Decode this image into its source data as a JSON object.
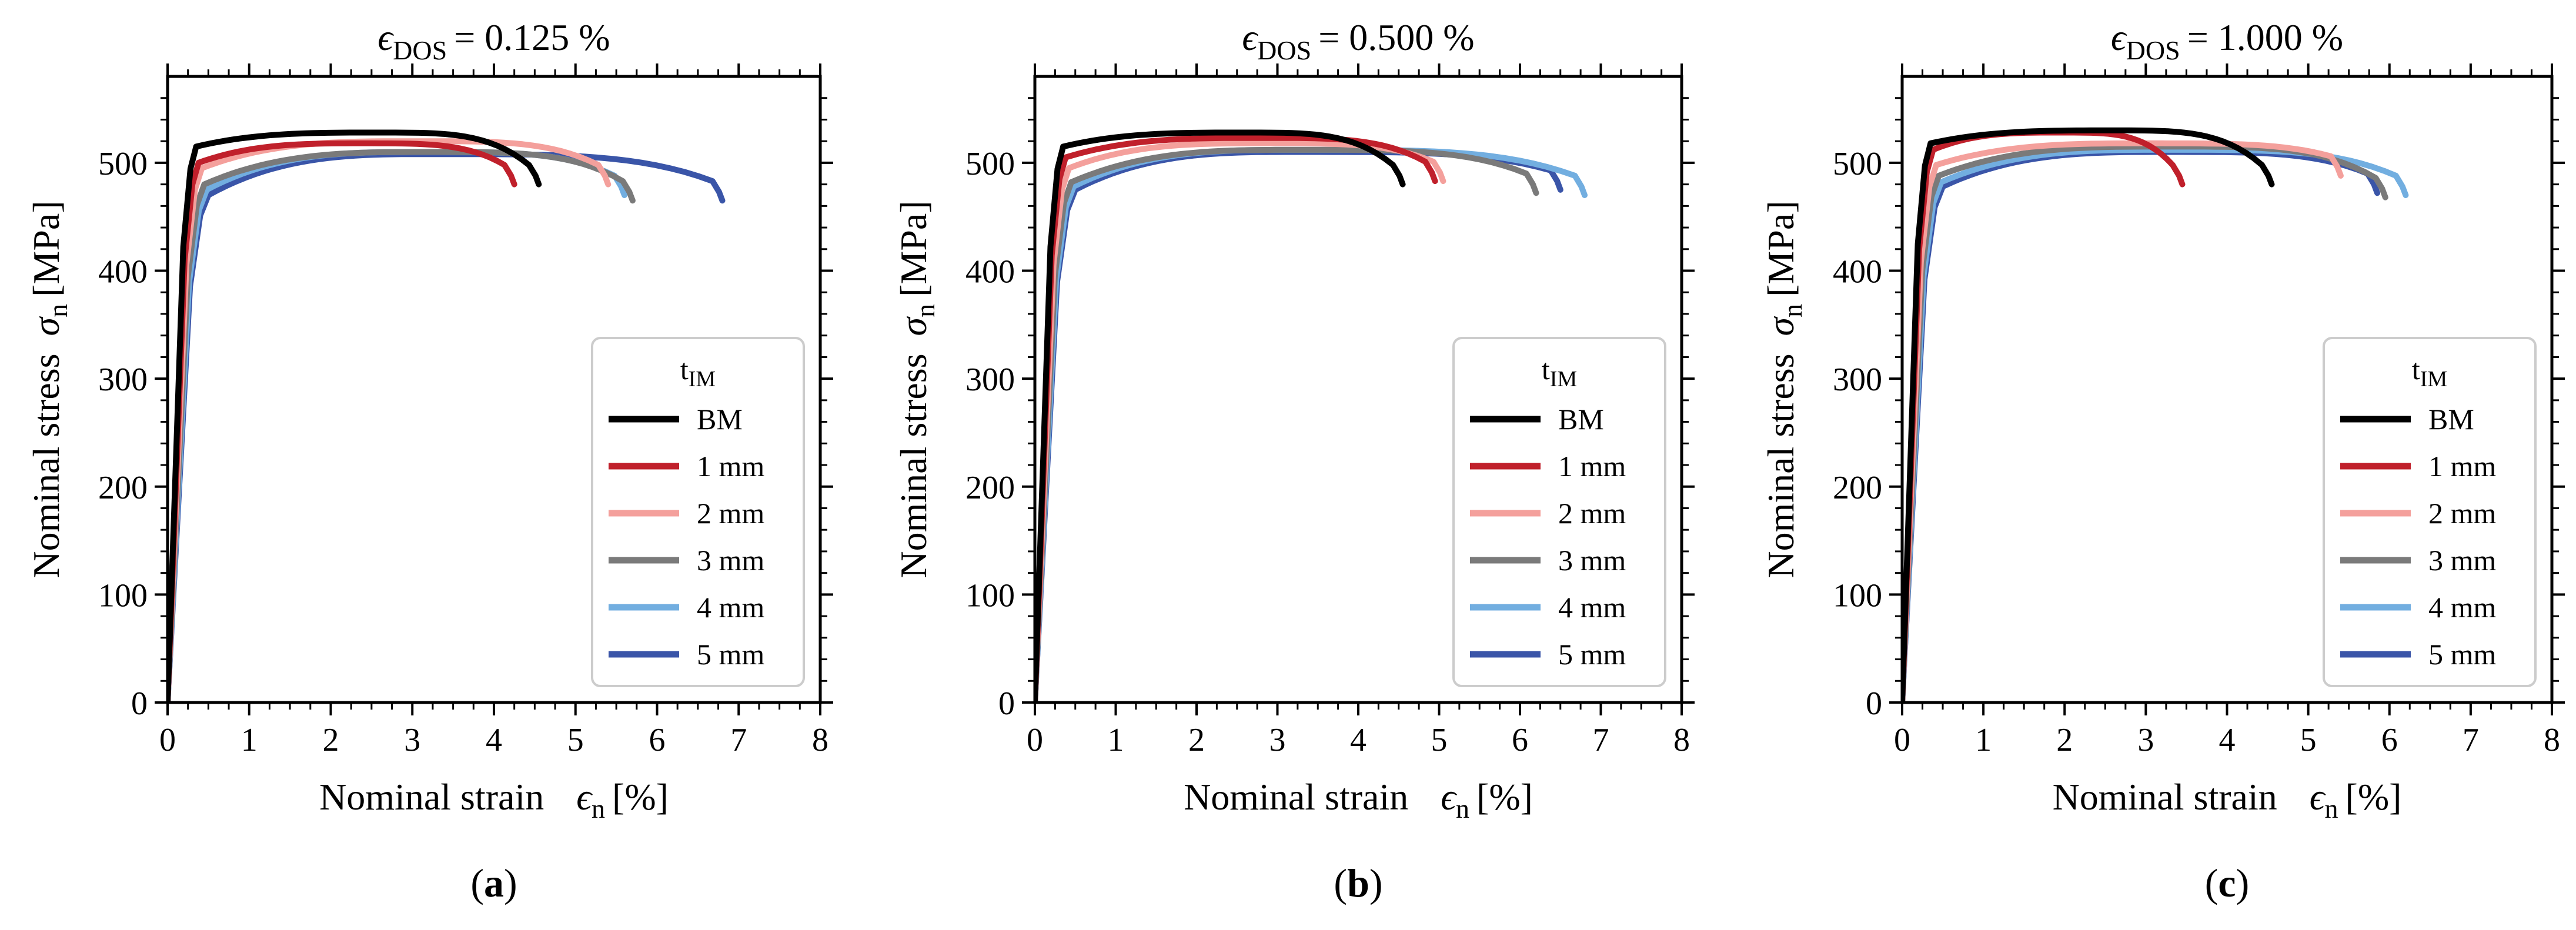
{
  "figure": {
    "ylabel_prefix": "Nominal stress",
    "xlabel_prefix": "Nominal strain"
  },
  "chart_data": [
    {
      "type": "line",
      "title": "ϵDOS = 0.125 %",
      "title_symbol": "ϵ",
      "title_subscript": "DOS",
      "title_value": "= 0.125 %",
      "caption_letter": "a",
      "xlabel": "Nominal strain ϵn [%]",
      "ylabel": "Nominal stress σn [MPa]",
      "xlim": [
        0,
        8
      ],
      "ylim": [
        0,
        580
      ],
      "xticks": [
        "0",
        "1",
        "2",
        "3",
        "4",
        "5",
        "6",
        "7",
        "8"
      ],
      "yticks": [
        "0",
        "100",
        "200",
        "300",
        "400",
        "500"
      ],
      "legend_title": "tIM",
      "legend_location": "lower right",
      "series": [
        {
          "name": "BM",
          "color": "#000000",
          "fracture_strain": 4.55,
          "uts": 528,
          "yield_strain": 0.35,
          "yield_stress": 515,
          "end_stress": 480
        },
        {
          "name": "1 mm",
          "color": "#c0202b",
          "fracture_strain": 4.25,
          "uts": 518,
          "yield_strain": 0.38,
          "yield_stress": 500,
          "end_stress": 480
        },
        {
          "name": "2 mm",
          "color": "#f4a09c",
          "fracture_strain": 5.4,
          "uts": 520,
          "yield_strain": 0.42,
          "yield_stress": 495,
          "end_stress": 480
        },
        {
          "name": "3 mm",
          "color": "#7a7a7a",
          "fracture_strain": 5.7,
          "uts": 510,
          "yield_strain": 0.45,
          "yield_stress": 480,
          "end_stress": 465
        },
        {
          "name": "4 mm",
          "color": "#72aee0",
          "fracture_strain": 5.6,
          "uts": 510,
          "yield_strain": 0.48,
          "yield_stress": 475,
          "end_stress": 470
        },
        {
          "name": "5 mm",
          "color": "#3a55a8",
          "fracture_strain": 6.8,
          "uts": 508,
          "yield_strain": 0.5,
          "yield_stress": 470,
          "end_stress": 465
        }
      ]
    },
    {
      "type": "line",
      "title": "ϵDOS = 0.500 %",
      "title_symbol": "ϵ",
      "title_subscript": "DOS",
      "title_value": "= 0.500 %",
      "caption_letter": "b",
      "xlabel": "Nominal strain ϵn [%]",
      "ylabel": "Nominal stress σn [MPa]",
      "xlim": [
        0,
        8
      ],
      "ylim": [
        0,
        580
      ],
      "xticks": [
        "0",
        "1",
        "2",
        "3",
        "4",
        "5",
        "6",
        "7",
        "8"
      ],
      "yticks": [
        "0",
        "100",
        "200",
        "300",
        "400",
        "500"
      ],
      "legend_title": "tIM",
      "legend_location": "lower right",
      "series": [
        {
          "name": "BM",
          "color": "#000000",
          "fracture_strain": 4.55,
          "uts": 528,
          "yield_strain": 0.35,
          "yield_stress": 515,
          "end_stress": 480
        },
        {
          "name": "1 mm",
          "color": "#c0202b",
          "fracture_strain": 4.95,
          "uts": 523,
          "yield_strain": 0.38,
          "yield_stress": 505,
          "end_stress": 483
        },
        {
          "name": "2 mm",
          "color": "#f4a09c",
          "fracture_strain": 5.05,
          "uts": 518,
          "yield_strain": 0.42,
          "yield_stress": 495,
          "end_stress": 483
        },
        {
          "name": "3 mm",
          "color": "#7a7a7a",
          "fracture_strain": 6.2,
          "uts": 512,
          "yield_strain": 0.45,
          "yield_stress": 482,
          "end_stress": 472
        },
        {
          "name": "4 mm",
          "color": "#72aee0",
          "fracture_strain": 6.8,
          "uts": 512,
          "yield_strain": 0.48,
          "yield_stress": 478,
          "end_stress": 470
        },
        {
          "name": "5 mm",
          "color": "#3a55a8",
          "fracture_strain": 6.5,
          "uts": 510,
          "yield_strain": 0.5,
          "yield_stress": 475,
          "end_stress": 475
        }
      ]
    },
    {
      "type": "line",
      "title": "ϵDOS = 1.000 %",
      "title_symbol": "ϵ",
      "title_subscript": "DOS",
      "title_value": "= 1.000 %",
      "caption_letter": "c",
      "xlabel": "Nominal strain ϵn [%]",
      "ylabel": "Nominal stress σn [MPa]",
      "xlim": [
        0,
        8
      ],
      "ylim": [
        0,
        580
      ],
      "xticks": [
        "0",
        "1",
        "2",
        "3",
        "4",
        "5",
        "6",
        "7",
        "8"
      ],
      "yticks": [
        "0",
        "100",
        "200",
        "300",
        "400",
        "500"
      ],
      "legend_title": "tIM",
      "legend_location": "lower right",
      "series": [
        {
          "name": "BM",
          "color": "#000000",
          "fracture_strain": 4.55,
          "uts": 530,
          "yield_strain": 0.35,
          "yield_stress": 518,
          "end_stress": 480
        },
        {
          "name": "1 mm",
          "color": "#c0202b",
          "fracture_strain": 3.45,
          "uts": 528,
          "yield_strain": 0.38,
          "yield_stress": 512,
          "end_stress": 480
        },
        {
          "name": "2 mm",
          "color": "#f4a09c",
          "fracture_strain": 5.4,
          "uts": 518,
          "yield_strain": 0.42,
          "yield_stress": 498,
          "end_stress": 488
        },
        {
          "name": "3 mm",
          "color": "#7a7a7a",
          "fracture_strain": 5.95,
          "uts": 515,
          "yield_strain": 0.45,
          "yield_stress": 488,
          "end_stress": 468
        },
        {
          "name": "4 mm",
          "color": "#72aee0",
          "fracture_strain": 6.2,
          "uts": 512,
          "yield_strain": 0.48,
          "yield_stress": 482,
          "end_stress": 470
        },
        {
          "name": "5 mm",
          "color": "#3a55a8",
          "fracture_strain": 5.85,
          "uts": 510,
          "yield_strain": 0.5,
          "yield_stress": 478,
          "end_stress": 472
        }
      ]
    }
  ]
}
